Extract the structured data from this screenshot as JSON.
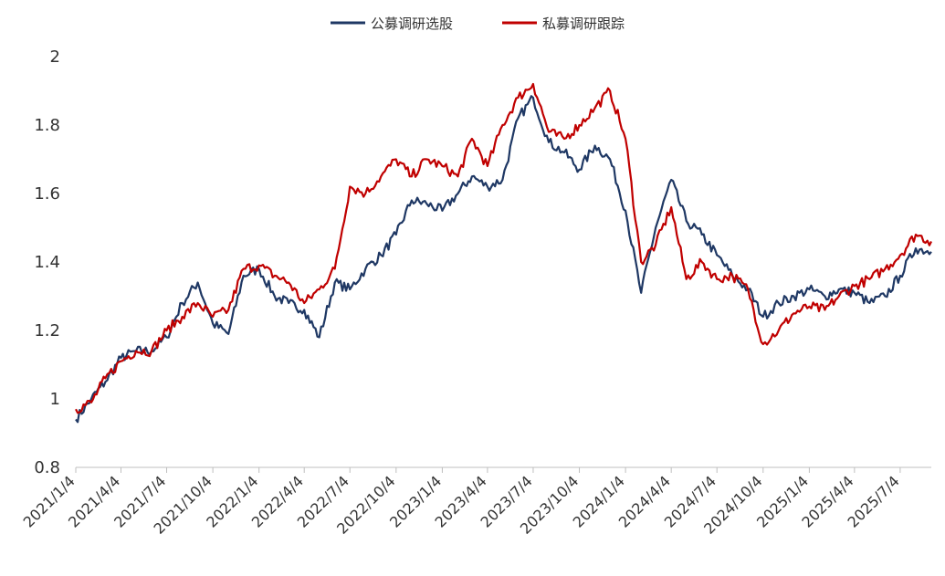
{
  "legend": [
    {
      "label": "公募调研选股",
      "color": "#1f3864"
    },
    {
      "label": "私募调研跟踪",
      "color": "#c00000"
    }
  ],
  "chart_data": {
    "type": "line",
    "title": "",
    "xlabel": "",
    "ylabel": "",
    "ylim": [
      0.8,
      2.0
    ],
    "yticks": [
      "0.8",
      "1",
      "1.2",
      "1.4",
      "1.6",
      "1.8",
      "2"
    ],
    "xticks": [
      "2021/1/4",
      "2021/4/4",
      "2021/7/4",
      "2021/10/4",
      "2022/1/4",
      "2022/4/4",
      "2022/7/4",
      "2022/10/4",
      "2023/1/4",
      "2023/4/4",
      "2023/7/4",
      "2023/10/4",
      "2024/1/4",
      "2024/4/4",
      "2024/7/4",
      "2024/10/4",
      "2025/1/4",
      "2025/4/4",
      "2025/7/4"
    ],
    "grid": false,
    "legend_position": "top-center",
    "x": [
      "2021/1/4",
      "2021/2/4",
      "2021/3/4",
      "2021/4/4",
      "2021/5/4",
      "2021/6/4",
      "2021/7/4",
      "2021/8/4",
      "2021/9/4",
      "2021/10/4",
      "2021/11/4",
      "2021/12/4",
      "2022/1/4",
      "2022/2/4",
      "2022/3/4",
      "2022/4/4",
      "2022/5/4",
      "2022/6/4",
      "2022/7/4",
      "2022/8/4",
      "2022/9/4",
      "2022/10/4",
      "2022/11/4",
      "2022/12/4",
      "2023/1/4",
      "2023/2/4",
      "2023/3/4",
      "2023/4/4",
      "2023/5/4",
      "2023/6/4",
      "2023/7/4",
      "2023/8/4",
      "2023/9/4",
      "2023/10/4",
      "2023/11/4",
      "2023/12/4",
      "2024/1/4",
      "2024/2/4",
      "2024/3/4",
      "2024/4/4",
      "2024/5/4",
      "2024/6/4",
      "2024/7/4",
      "2024/8/4",
      "2024/9/4",
      "2024/10/4",
      "2024/11/4",
      "2024/12/4",
      "2025/1/4",
      "2025/2/4",
      "2025/3/4",
      "2025/4/4",
      "2025/5/4",
      "2025/6/4",
      "2025/7/4",
      "2025/8/4",
      "2025/9/4"
    ],
    "series": [
      {
        "name": "公募调研选股",
        "color": "#1f3864",
        "values": [
          0.94,
          1.0,
          1.05,
          1.12,
          1.14,
          1.14,
          1.18,
          1.28,
          1.34,
          1.22,
          1.19,
          1.36,
          1.38,
          1.3,
          1.28,
          1.26,
          1.18,
          1.34,
          1.32,
          1.38,
          1.42,
          1.48,
          1.58,
          1.57,
          1.55,
          1.6,
          1.65,
          1.62,
          1.64,
          1.82,
          1.88,
          1.75,
          1.72,
          1.67,
          1.74,
          1.7,
          1.55,
          1.31,
          1.5,
          1.64,
          1.52,
          1.48,
          1.42,
          1.36,
          1.32,
          1.24,
          1.28,
          1.3,
          1.32,
          1.3,
          1.32,
          1.31,
          1.28,
          1.3,
          1.36,
          1.44,
          1.43
        ]
      },
      {
        "name": "私募调研跟踪",
        "color": "#c00000",
        "values": [
          0.97,
          0.99,
          1.06,
          1.11,
          1.14,
          1.14,
          1.2,
          1.24,
          1.28,
          1.24,
          1.26,
          1.38,
          1.39,
          1.36,
          1.34,
          1.28,
          1.32,
          1.38,
          1.62,
          1.6,
          1.65,
          1.7,
          1.65,
          1.7,
          1.68,
          1.65,
          1.76,
          1.68,
          1.8,
          1.88,
          1.92,
          1.78,
          1.76,
          1.8,
          1.85,
          1.9,
          1.76,
          1.4,
          1.45,
          1.56,
          1.35,
          1.4,
          1.35,
          1.36,
          1.32,
          1.16,
          1.2,
          1.25,
          1.27,
          1.26,
          1.3,
          1.33,
          1.35,
          1.38,
          1.42,
          1.48,
          1.46
        ]
      }
    ]
  }
}
